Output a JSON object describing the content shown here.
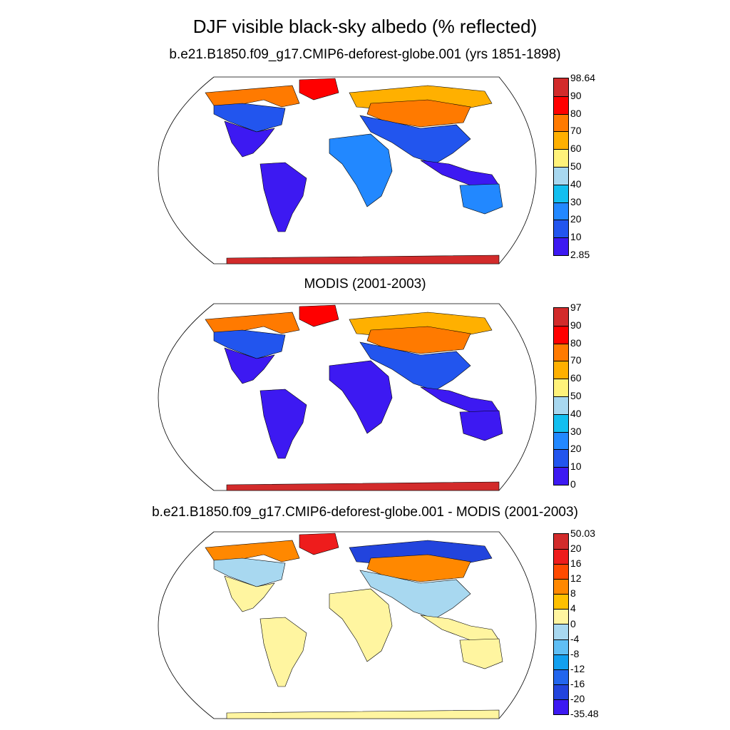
{
  "title": "DJF visible black-sky albedo (% reflected)",
  "panels": [
    {
      "title": "b.e21.B1850.f09_g17.CMIP6-deforest-globe.001 (yrs 1851-1898)",
      "colorbar": {
        "labels": [
          "98.64",
          "90",
          "80",
          "70",
          "60",
          "50",
          "40",
          "30",
          "20",
          "10",
          "2.85"
        ],
        "colors": [
          "#d22b2b",
          "#ff0000",
          "#ff7a00",
          "#ffb000",
          "#fff27a",
          "#a8d8f0",
          "#12bff0",
          "#2288ff",
          "#2255ee",
          "#3d19f2"
        ]
      },
      "palette": {
        "tropic": "#3d19f2",
        "africa": "#2288ff",
        "mid": "#2255ee",
        "snow": "#ff0000",
        "snow2": "#ff7a00",
        "snow3": "#ffb000",
        "ice": "#d22b2b"
      }
    },
    {
      "title": "MODIS (2001-2003)",
      "colorbar": {
        "labels": [
          "97",
          "90",
          "80",
          "70",
          "60",
          "50",
          "40",
          "30",
          "20",
          "10",
          "0"
        ],
        "colors": [
          "#d22b2b",
          "#ff0000",
          "#ff7a00",
          "#ffb000",
          "#fff27a",
          "#a8d8f0",
          "#12bff0",
          "#2288ff",
          "#2255ee",
          "#3d19f2"
        ]
      },
      "palette": {
        "tropic": "#3d19f2",
        "africa": "#3d19f2",
        "mid": "#2255ee",
        "snow": "#ff0000",
        "snow2": "#ff7a00",
        "snow3": "#ffb000",
        "ice": "#d22b2b"
      }
    },
    {
      "title": "b.e21.B1850.f09_g17.CMIP6-deforest-globe.001 - MODIS (2001-2003)",
      "colorbar": {
        "labels": [
          "50.03",
          "20",
          "16",
          "12",
          "8",
          "4",
          "0",
          "-4",
          "-8",
          "-12",
          "-16",
          "-20",
          "-35.48"
        ],
        "colors": [
          "#d22b2b",
          "#ee1c1c",
          "#ff4a00",
          "#ff8800",
          "#ffc000",
          "#fff5a0",
          "#a8d8f0",
          "#60bff5",
          "#12a0f0",
          "#2266ee",
          "#2244dd",
          "#3d19f2"
        ]
      },
      "palette": {
        "tropic": "#fff5a0",
        "africa": "#fff5a0",
        "mid": "#a8d8f0",
        "snow": "#ee1c1c",
        "snow2": "#ff8800",
        "snow3": "#2244dd",
        "ice": "#fff5a0"
      }
    }
  ]
}
